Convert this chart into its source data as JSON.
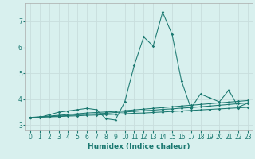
{
  "xlabel": "Humidex (Indice chaleur)",
  "bg_color": "#d8f0ee",
  "grid_color": "#c8dedd",
  "line_color": "#1a7870",
  "xlim": [
    -0.5,
    23.5
  ],
  "ylim": [
    2.8,
    7.7
  ],
  "x_ticks": [
    0,
    1,
    2,
    3,
    4,
    5,
    6,
    7,
    8,
    9,
    10,
    11,
    12,
    13,
    14,
    15,
    16,
    17,
    18,
    19,
    20,
    21,
    22,
    23
  ],
  "y_ticks": [
    3,
    4,
    5,
    6,
    7
  ],
  "spiky_series": [
    3.3,
    3.3,
    3.4,
    3.5,
    3.55,
    3.6,
    3.65,
    3.6,
    3.25,
    3.2,
    3.9,
    5.3,
    6.4,
    6.05,
    7.35,
    6.5,
    4.7,
    3.65,
    4.2,
    4.05,
    3.9,
    4.35,
    3.7,
    3.85
  ],
  "flat_series": [
    [
      3.3,
      3.32,
      3.35,
      3.38,
      3.41,
      3.44,
      3.47,
      3.49,
      3.51,
      3.53,
      3.56,
      3.59,
      3.62,
      3.65,
      3.68,
      3.71,
      3.74,
      3.77,
      3.8,
      3.83,
      3.86,
      3.89,
      3.92,
      3.95
    ],
    [
      3.3,
      3.31,
      3.33,
      3.35,
      3.37,
      3.4,
      3.42,
      3.44,
      3.46,
      3.49,
      3.51,
      3.53,
      3.56,
      3.58,
      3.61,
      3.63,
      3.66,
      3.68,
      3.71,
      3.74,
      3.77,
      3.8,
      3.83,
      3.86
    ],
    [
      3.3,
      3.31,
      3.32,
      3.33,
      3.35,
      3.36,
      3.38,
      3.39,
      3.41,
      3.42,
      3.44,
      3.46,
      3.47,
      3.49,
      3.51,
      3.53,
      3.55,
      3.57,
      3.59,
      3.61,
      3.63,
      3.65,
      3.67,
      3.69
    ]
  ]
}
